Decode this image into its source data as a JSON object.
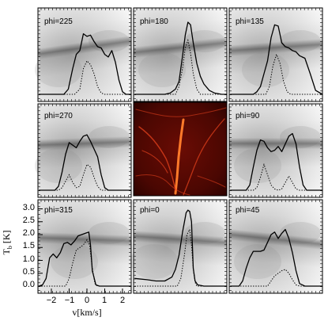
{
  "chart_data": {
    "type": "line",
    "layout": "3x3 grid of spectra over grayscale column-density maps; center panel is a red intensity map",
    "xlabel": "v[km/s]",
    "ylabel": "T_b [K]",
    "xlim": [
      -2.7,
      2.7
    ],
    "ylim": [
      -0.1,
      3.4
    ],
    "xticks": [
      -2,
      -1,
      0,
      1,
      2
    ],
    "yticks": [
      0.0,
      0.5,
      1.0,
      1.5,
      2.0,
      2.5,
      3.0
    ],
    "xtick_labels": [
      "−2",
      "−1",
      "0",
      "1",
      "2"
    ],
    "ytick_labels": [
      "0.0",
      "0.5",
      "1.0",
      "1.5",
      "2.0",
      "2.5",
      "3.0"
    ],
    "line_styles": {
      "solid": "total spectrum",
      "dotted": "component spectrum"
    },
    "panels": [
      {
        "label": "phi=225",
        "solid": {
          "x": [
            -2.7,
            -1.3,
            -1.05,
            -0.8,
            -0.6,
            -0.4,
            -0.2,
            0.0,
            0.2,
            0.4,
            0.6,
            0.8,
            1.0,
            1.2,
            1.4,
            1.6,
            1.8,
            2.0,
            2.2,
            2.7
          ],
          "y": [
            0.0,
            0.0,
            0.2,
            1.0,
            1.55,
            1.7,
            2.35,
            2.25,
            2.3,
            2.05,
            1.85,
            1.8,
            1.55,
            1.45,
            1.7,
            1.25,
            0.55,
            0.1,
            0.0,
            0.0
          ]
        },
        "dotted": {
          "x": [
            -2.7,
            -0.7,
            -0.4,
            -0.2,
            0.0,
            0.2,
            0.4,
            0.6,
            0.8,
            1.0,
            2.7
          ],
          "y": [
            0.0,
            0.0,
            0.2,
            1.0,
            1.3,
            1.15,
            0.8,
            0.3,
            0.05,
            0.0,
            0.0
          ]
        }
      },
      {
        "label": "phi=180",
        "solid": {
          "x": [
            -2.7,
            -1.0,
            -0.7,
            -0.4,
            -0.2,
            0.0,
            0.15,
            0.3,
            0.45,
            0.6,
            0.8,
            1.0,
            1.2,
            1.5,
            1.8,
            2.2,
            2.7
          ],
          "y": [
            0.0,
            0.0,
            0.05,
            0.2,
            0.5,
            1.5,
            2.3,
            2.8,
            2.7,
            2.0,
            1.2,
            0.7,
            0.4,
            0.15,
            0.05,
            0.0,
            0.0
          ]
        },
        "dotted": {
          "x": [
            -2.7,
            -0.4,
            -0.2,
            0.0,
            0.15,
            0.3,
            0.45,
            0.6,
            0.8,
            1.0,
            2.7
          ],
          "y": [
            0.0,
            0.0,
            0.3,
            1.0,
            1.8,
            2.1,
            1.6,
            0.8,
            0.2,
            0.0,
            0.0
          ]
        }
      },
      {
        "label": "phi=135",
        "solid": {
          "x": [
            -2.7,
            -1.4,
            -1.2,
            -1.0,
            -0.8,
            -0.6,
            -0.4,
            -0.2,
            0.0,
            0.2,
            0.4,
            0.6,
            0.8,
            1.0,
            1.2,
            1.5,
            1.8,
            2.1,
            2.7
          ],
          "y": [
            0.0,
            0.0,
            0.1,
            0.3,
            0.8,
            1.3,
            2.2,
            2.7,
            2.65,
            2.0,
            1.85,
            1.8,
            1.7,
            1.65,
            1.5,
            1.4,
            0.8,
            0.15,
            0.0
          ]
        },
        "dotted": {
          "x": [
            -2.7,
            -0.7,
            -0.5,
            -0.3,
            -0.1,
            0.1,
            0.3,
            0.5,
            0.7,
            2.7
          ],
          "y": [
            0.0,
            0.0,
            0.3,
            1.1,
            1.55,
            1.2,
            0.5,
            0.1,
            0.0,
            0.0
          ]
        }
      },
      {
        "label": "phi=270",
        "solid": {
          "x": [
            -2.7,
            -1.8,
            -1.6,
            -1.4,
            -1.2,
            -1.0,
            -0.8,
            -0.6,
            -0.4,
            -0.2,
            0.0,
            0.2,
            0.4,
            0.6,
            0.8,
            1.0,
            1.2,
            1.4,
            2.7
          ],
          "y": [
            0.0,
            0.0,
            0.15,
            0.7,
            1.4,
            1.85,
            1.75,
            1.65,
            1.9,
            2.1,
            2.15,
            1.9,
            1.6,
            1.3,
            0.6,
            0.1,
            0.0,
            0.0,
            0.0
          ]
        },
        "dotted": {
          "x": [
            -2.7,
            -1.6,
            -1.4,
            -1.2,
            -1.0,
            -0.8,
            -0.6,
            -0.4,
            -0.2,
            0.0,
            0.2,
            0.4,
            0.6,
            0.8,
            2.7
          ],
          "y": [
            0.0,
            0.0,
            0.1,
            0.35,
            0.6,
            0.3,
            0.1,
            0.15,
            0.6,
            1.0,
            0.9,
            0.5,
            0.15,
            0.0,
            0.0
          ]
        }
      },
      {
        "label": "phi=90",
        "solid": {
          "x": [
            -2.7,
            -1.8,
            -1.6,
            -1.4,
            -1.2,
            -1.0,
            -0.8,
            -0.6,
            -0.4,
            -0.2,
            0.0,
            0.2,
            0.4,
            0.6,
            0.8,
            1.0,
            1.2,
            1.4,
            1.6,
            2.7
          ],
          "y": [
            0.0,
            0.0,
            0.2,
            0.9,
            1.55,
            1.95,
            1.9,
            1.65,
            1.5,
            1.55,
            1.7,
            1.5,
            1.8,
            2.1,
            2.2,
            1.8,
            0.9,
            0.2,
            0.0,
            0.0
          ]
        },
        "dotted": {
          "x": [
            -2.7,
            -1.4,
            -1.2,
            -1.0,
            -0.8,
            -0.6,
            -0.4,
            -0.2,
            0.0,
            0.2,
            0.4,
            0.6,
            0.8,
            1.0,
            1.2,
            2.7
          ],
          "y": [
            0.0,
            0.0,
            0.1,
            0.5,
            1.0,
            0.6,
            0.2,
            0.05,
            0.0,
            0.05,
            0.3,
            0.55,
            0.3,
            0.05,
            0.0,
            0.0
          ]
        }
      },
      {
        "label": "phi=315",
        "solid": {
          "x": [
            -2.7,
            -2.5,
            -2.3,
            -2.1,
            -1.9,
            -1.7,
            -1.5,
            -1.3,
            -1.1,
            -0.9,
            -0.7,
            -0.5,
            -0.3,
            -0.1,
            0.1,
            0.2,
            0.3,
            0.5,
            0.7,
            2.7
          ],
          "y": [
            0.0,
            0.05,
            0.3,
            1.1,
            1.25,
            1.1,
            1.3,
            1.65,
            1.7,
            1.6,
            1.75,
            1.95,
            2.0,
            2.05,
            2.1,
            1.6,
            0.6,
            0.05,
            0.0,
            0.0
          ]
        },
        "dotted": {
          "x": [
            -2.7,
            -1.2,
            -1.0,
            -0.8,
            -0.6,
            -0.4,
            -0.2,
            0.0,
            0.15,
            0.3,
            0.45,
            0.6,
            2.7
          ],
          "y": [
            0.0,
            0.0,
            0.3,
            0.9,
            1.4,
            1.5,
            1.6,
            1.8,
            1.6,
            0.7,
            0.1,
            0.0,
            0.0
          ]
        }
      },
      {
        "label": "phi=0",
        "solid": {
          "x": [
            -2.7,
            -2.0,
            -1.5,
            -1.0,
            -0.6,
            -0.4,
            -0.2,
            0.0,
            0.2,
            0.3,
            0.4,
            0.5,
            0.55,
            0.6,
            0.7,
            0.85,
            1.2,
            2.7
          ],
          "y": [
            0.3,
            0.25,
            0.2,
            0.2,
            0.35,
            0.65,
            1.2,
            2.1,
            2.85,
            2.95,
            2.9,
            2.5,
            1.6,
            0.7,
            0.2,
            0.05,
            0.0,
            0.0
          ]
        },
        "dotted": {
          "x": [
            -2.7,
            -0.3,
            -0.1,
            0.1,
            0.25,
            0.4,
            0.5,
            0.6,
            0.7,
            0.8,
            2.7
          ],
          "y": [
            0.0,
            0.0,
            0.3,
            1.2,
            2.0,
            2.2,
            1.6,
            0.7,
            0.15,
            0.0,
            0.0
          ]
        }
      },
      {
        "label": "phi=45",
        "solid": {
          "x": [
            -2.7,
            -2.2,
            -2.0,
            -1.8,
            -1.6,
            -1.4,
            -1.2,
            -1.0,
            -0.8,
            -0.6,
            -0.4,
            -0.2,
            0.0,
            0.2,
            0.4,
            0.6,
            0.8,
            1.0,
            1.2,
            1.5,
            2.7
          ],
          "y": [
            0.0,
            0.0,
            0.2,
            0.7,
            1.1,
            1.35,
            1.35,
            1.35,
            1.4,
            1.7,
            2.0,
            2.1,
            1.85,
            2.05,
            2.2,
            1.85,
            1.3,
            0.6,
            0.1,
            0.0,
            0.0
          ]
        },
        "dotted": {
          "x": [
            -2.7,
            -0.6,
            -0.4,
            -0.2,
            0.0,
            0.2,
            0.4,
            0.6,
            0.8,
            1.0,
            1.2,
            2.7
          ],
          "y": [
            0.0,
            0.0,
            0.2,
            0.4,
            0.5,
            0.6,
            0.65,
            0.5,
            0.25,
            0.05,
            0.0,
            0.0
          ]
        }
      }
    ]
  }
}
